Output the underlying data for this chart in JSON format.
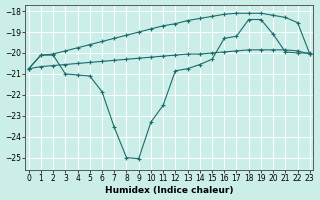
{
  "xlabel": "Humidex (Indice chaleur)",
  "bg_color": "#cceee8",
  "grid_color": "#ffffff",
  "line_color": "#1a6b6b",
  "x_ticks": [
    0,
    1,
    2,
    3,
    4,
    5,
    6,
    7,
    8,
    9,
    10,
    11,
    12,
    13,
    14,
    15,
    16,
    17,
    18,
    19,
    20,
    21,
    22,
    23
  ],
  "y_ticks": [
    -18,
    -19,
    -20,
    -21,
    -22,
    -23,
    -24,
    -25
  ],
  "xlim": [
    -0.3,
    23.3
  ],
  "ylim": [
    -25.6,
    -17.7
  ],
  "line1_x": [
    0,
    1,
    2,
    3,
    4,
    5,
    6,
    7,
    8,
    9,
    10,
    11,
    12,
    13,
    14,
    15,
    16,
    17,
    18,
    19,
    20,
    21,
    22,
    23
  ],
  "line1_y": [
    -20.75,
    -20.1,
    -20.05,
    -19.9,
    -19.75,
    -19.6,
    -19.45,
    -19.3,
    -19.15,
    -19.0,
    -18.85,
    -18.7,
    -18.6,
    -18.45,
    -18.35,
    -18.25,
    -18.15,
    -18.1,
    -18.1,
    -18.1,
    -18.2,
    -18.3,
    -18.55,
    -20.05
  ],
  "line2_x": [
    0,
    1,
    2,
    3,
    4,
    5,
    6,
    7,
    8,
    9,
    10,
    11,
    12,
    13,
    14,
    15,
    16,
    17,
    18,
    19,
    20,
    21,
    22,
    23
  ],
  "line2_y": [
    -20.75,
    -20.65,
    -20.6,
    -20.55,
    -20.5,
    -20.45,
    -20.4,
    -20.35,
    -20.3,
    -20.25,
    -20.2,
    -20.15,
    -20.1,
    -20.05,
    -20.05,
    -20.0,
    -19.95,
    -19.9,
    -19.85,
    -19.85,
    -19.85,
    -19.85,
    -19.9,
    -20.05
  ],
  "line3_x": [
    0,
    1,
    2,
    3,
    4,
    5,
    6,
    7,
    8,
    9,
    10,
    11,
    12,
    13,
    14,
    15,
    16,
    17,
    18,
    19,
    20,
    21,
    22,
    23
  ],
  "line3_y": [
    -20.75,
    -20.1,
    -20.1,
    -21.0,
    -21.05,
    -21.1,
    -21.85,
    -23.55,
    -25.0,
    -25.05,
    -23.3,
    -22.5,
    -20.85,
    -20.75,
    -20.55,
    -20.3,
    -19.3,
    -19.2,
    -18.4,
    -18.4,
    -19.1,
    -19.95,
    -20.0,
    -20.0
  ]
}
